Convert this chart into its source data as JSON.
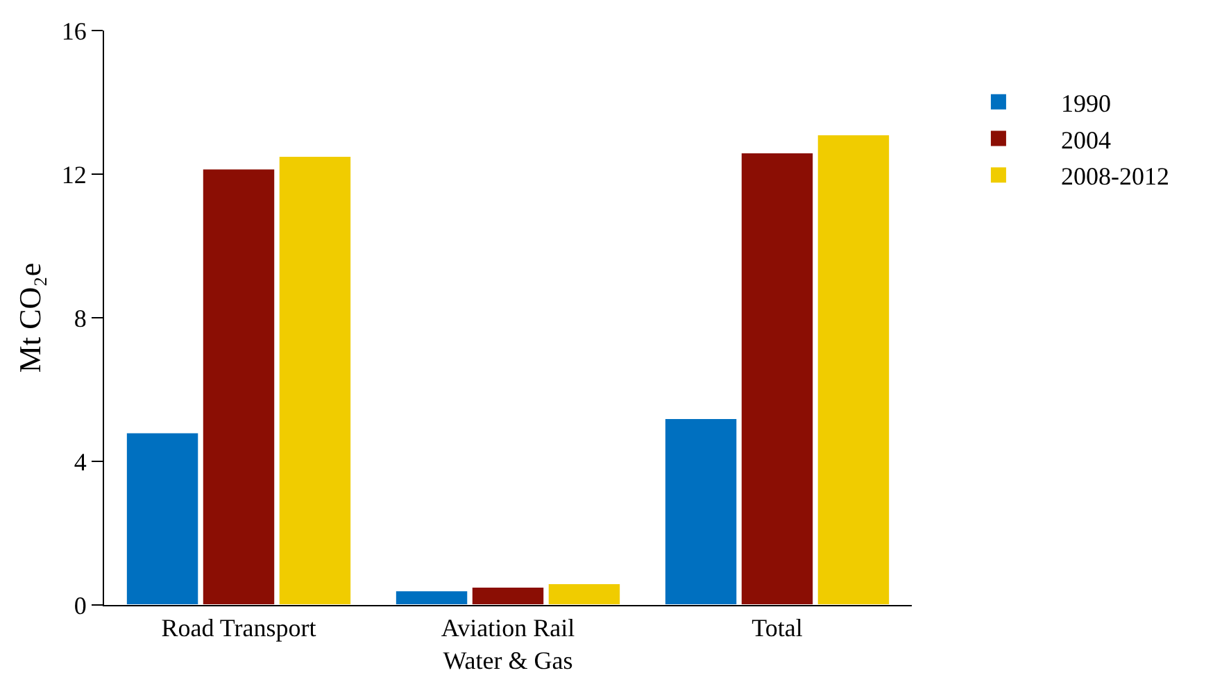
{
  "chart_data": {
    "type": "bar",
    "ylabel": "Mt CO₂e",
    "categories": [
      "Road Transport",
      "Aviation Rail\nWater & Gas",
      "Total"
    ],
    "series": [
      {
        "name": "1990",
        "color": "#0070c0",
        "values": [
          4.8,
          0.4,
          5.2
        ]
      },
      {
        "name": "2004",
        "color": "#8b0e04",
        "values": [
          12.15,
          0.5,
          12.6
        ]
      },
      {
        "name": "2008-2012",
        "color": "#f0cc00",
        "values": [
          12.5,
          0.6,
          13.1
        ]
      }
    ],
    "ylim": [
      0,
      16
    ],
    "yticks": [
      0,
      4,
      8,
      12,
      16
    ],
    "legend": "right"
  }
}
